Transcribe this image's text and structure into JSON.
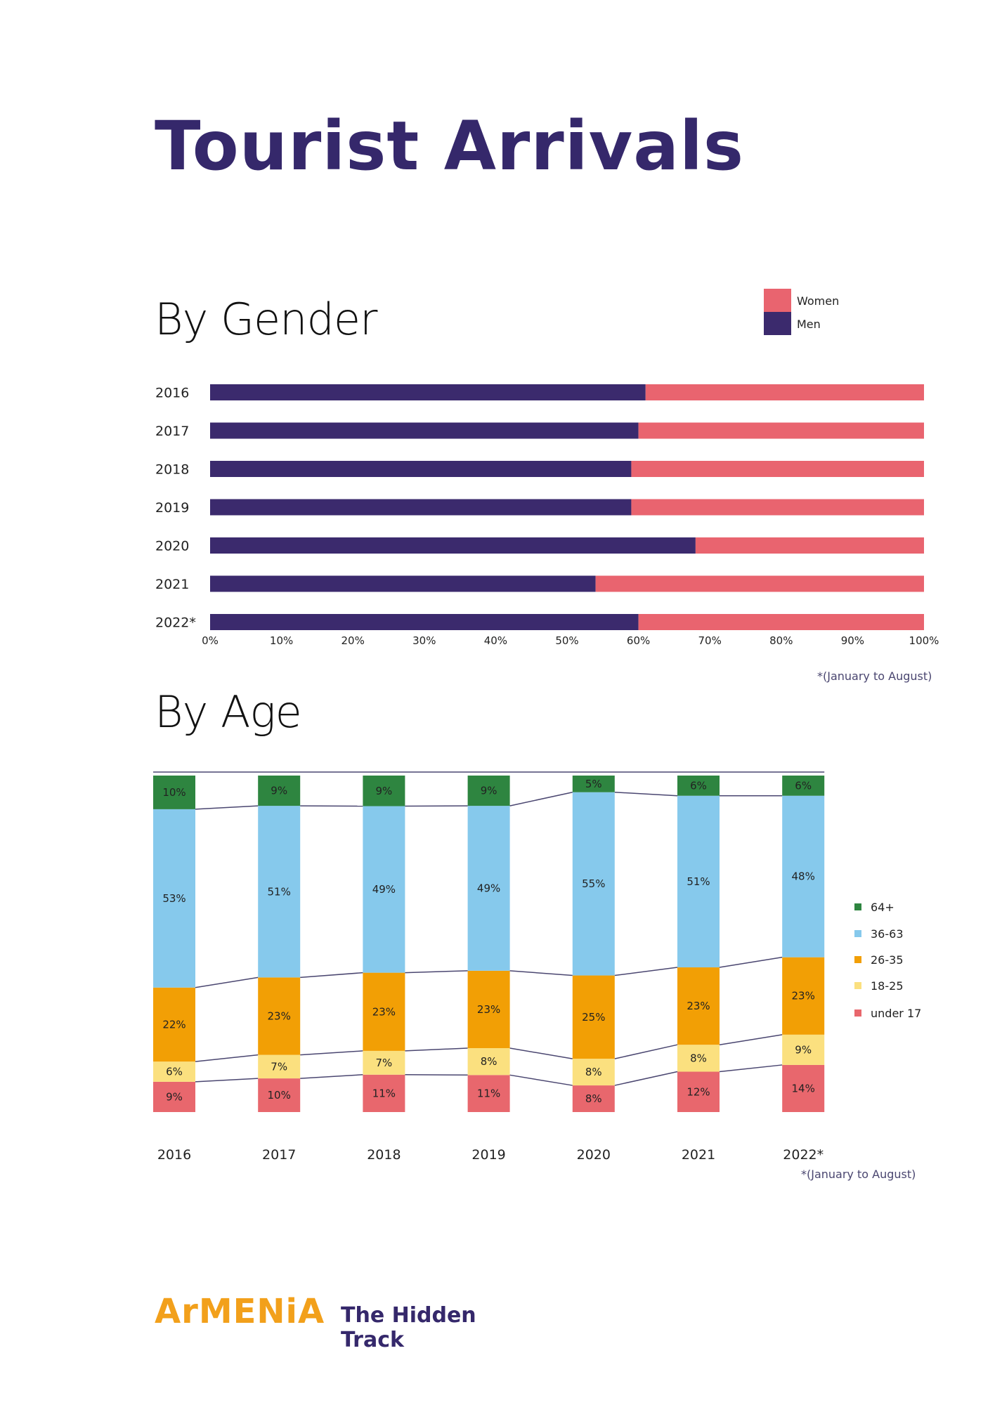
{
  "page": {
    "title": "Tourist Arrivals",
    "footer_logo": {
      "brand": "ArMENiA",
      "tagline_line1": "The Hidden",
      "tagline_line2": "Track"
    }
  },
  "colors": {
    "men": "#3b2a6d",
    "women": "#e9646f",
    "age_64_plus": "#2e8540",
    "age_36_63": "#86c9ec",
    "age_26_35": "#f29f05",
    "age_18_25": "#fbe07f",
    "age_under_17": "#e8676d",
    "connector": "#4a4670"
  },
  "chart_data": [
    {
      "type": "bar",
      "orientation": "horizontal",
      "stacked": true,
      "title": "By Gender",
      "categories": [
        "2016",
        "2017",
        "2018",
        "2019",
        "2020",
        "2021",
        "2022*"
      ],
      "series": [
        {
          "name": "Men",
          "values": [
            61,
            60,
            59,
            59,
            68,
            54,
            60
          ]
        },
        {
          "name": "Women",
          "values": [
            39,
            40,
            41,
            41,
            32,
            46,
            40
          ]
        }
      ],
      "xlim": [
        0,
        100
      ],
      "x_ticks": [
        "0%",
        "10%",
        "20%",
        "30%",
        "40%",
        "50%",
        "60%",
        "70%",
        "80%",
        "90%",
        "100%"
      ],
      "legend": [
        "Women",
        "Men"
      ],
      "legend_position": "top-right",
      "footnote": "*(January to August)"
    },
    {
      "type": "bar",
      "orientation": "vertical",
      "stacked": true,
      "normalized": true,
      "title": "By Age",
      "categories": [
        "2016",
        "2017",
        "2018",
        "2019",
        "2020",
        "2021",
        "2022*"
      ],
      "series": [
        {
          "name": "under 17",
          "values": [
            9,
            10,
            11,
            11,
            8,
            12,
            14
          ]
        },
        {
          "name": "18-25",
          "values": [
            6,
            7,
            7,
            8,
            8,
            8,
            9
          ]
        },
        {
          "name": "26-35",
          "values": [
            22,
            23,
            23,
            23,
            25,
            23,
            23
          ]
        },
        {
          "name": "36-63",
          "values": [
            53,
            51,
            49,
            49,
            55,
            51,
            48
          ]
        },
        {
          "name": "64+",
          "values": [
            10,
            9,
            9,
            9,
            5,
            6,
            6
          ]
        }
      ],
      "data_labels_suffix": "%",
      "legend": [
        "64+",
        "36-63",
        "26-35",
        "18-25",
        "under 17"
      ],
      "legend_position": "right",
      "footnote": "*(January to August)"
    }
  ]
}
